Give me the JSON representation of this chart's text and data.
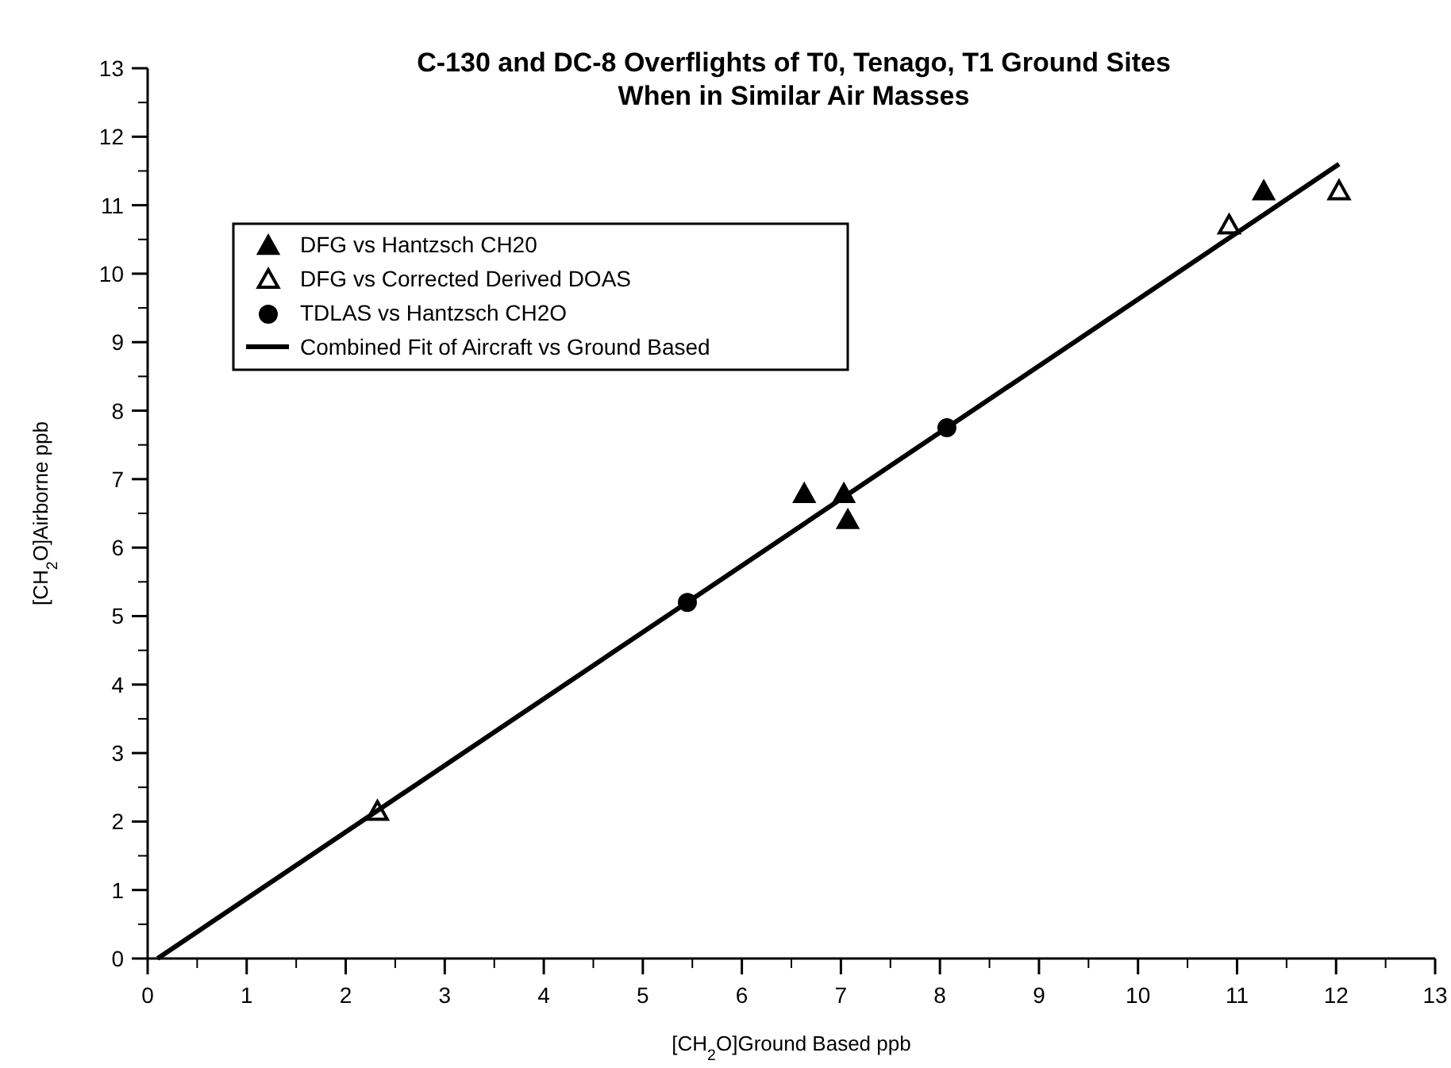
{
  "chart_data": {
    "type": "scatter",
    "title": "C-130 and DC-8 Overflights of T0, Tenago, T1 Ground Sites\nWhen in Similar Air Masses",
    "xlabel": "[CH$_{2}$O]Ground Based ppb",
    "ylabel": "[CH$_{2}$O]Airborne ppb",
    "xlim": [
      0,
      13
    ],
    "ylim": [
      0,
      13
    ],
    "xticks": [
      0,
      1,
      2,
      3,
      4,
      5,
      6,
      7,
      8,
      9,
      10,
      11,
      12,
      13
    ],
    "yticks": [
      0,
      1,
      2,
      3,
      4,
      5,
      6,
      7,
      8,
      9,
      10,
      11,
      12,
      13
    ],
    "grid": false,
    "legend": "top left",
    "series": [
      {
        "name": "DFG vs Hantzsch CH20",
        "color": "#000000",
        "marker": "triangle",
        "x": [
          6.63,
          7.03,
          7.07,
          11.27
        ],
        "values": [
          6.78,
          6.78,
          6.4,
          11.2
        ]
      },
      {
        "name": "DFG vs Corrected Derived DOAS",
        "color": "#000000",
        "marker": "triangle",
        "x": [
          2.32,
          10.92,
          12.03
        ],
        "values": [
          2.14,
          10.7,
          11.2
        ]
      },
      {
        "name": "TDLAS vs Hantzsch CH2O",
        "color": "#000000",
        "marker": "circle",
        "x": [
          5.45,
          8.07
        ],
        "values": [
          5.2,
          7.75
        ]
      },
      {
        "name": "Combined Fit of Aircraft vs Ground Based",
        "type": "line",
        "color": "#000000",
        "marker": "none",
        "line_style": "solid",
        "x": [
          0.1,
          12.03
        ],
        "values": [
          0,
          11.6
        ]
      }
    ]
  }
}
